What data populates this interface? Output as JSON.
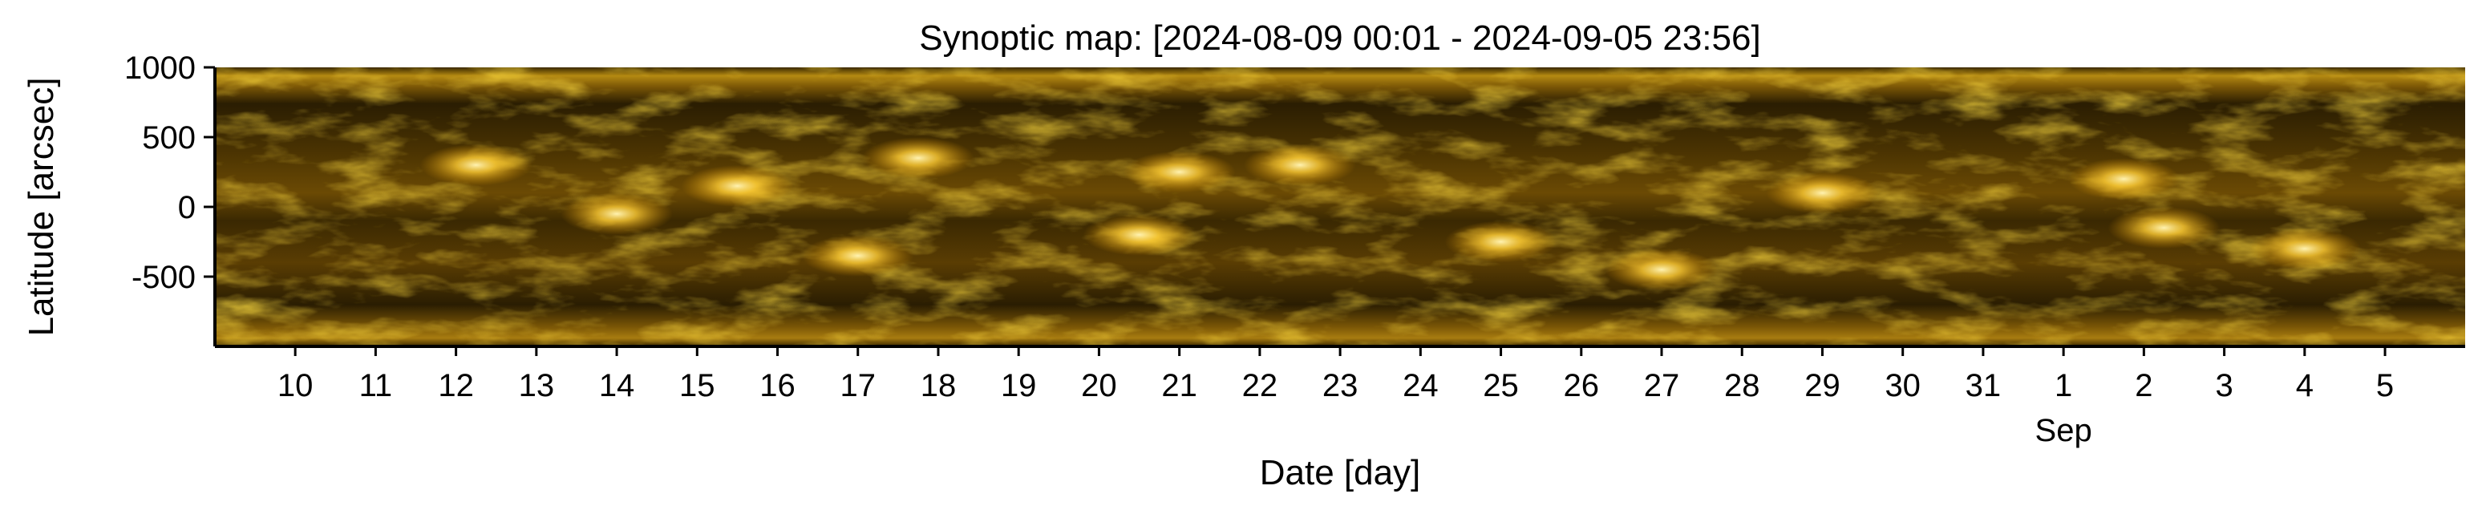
{
  "chart_data": {
    "type": "heatmap",
    "title": "Synoptic map: [2024-08-09 00:01 - 2024-09-05 23:56]",
    "xlabel": "Date [day]",
    "ylabel": "Latitude [arcsec]",
    "x_range": [
      "2024-08-09 00:01",
      "2024-09-05 23:56"
    ],
    "ylim": [
      -1000,
      1000
    ],
    "y_ticks": [
      1000,
      500,
      0,
      -500
    ],
    "y_tick_labels": [
      "1000",
      "500",
      "0",
      "-500"
    ],
    "x_ticks": [
      "2024-08-10",
      "2024-08-11",
      "2024-08-12",
      "2024-08-13",
      "2024-08-14",
      "2024-08-15",
      "2024-08-16",
      "2024-08-17",
      "2024-08-18",
      "2024-08-19",
      "2024-08-20",
      "2024-08-21",
      "2024-08-22",
      "2024-08-23",
      "2024-08-24",
      "2024-08-25",
      "2024-08-26",
      "2024-08-27",
      "2024-08-28",
      "2024-08-29",
      "2024-08-30",
      "2024-08-31",
      "2024-09-01",
      "2024-09-02",
      "2024-09-03",
      "2024-09-04",
      "2024-09-05"
    ],
    "x_tick_labels": [
      "10",
      "11",
      "12",
      "13",
      "14",
      "15",
      "16",
      "17",
      "18",
      "19",
      "20",
      "21",
      "22",
      "23",
      "24",
      "25",
      "26",
      "27",
      "28",
      "29",
      "30",
      "31",
      "1",
      "2",
      "3",
      "4",
      "5"
    ],
    "x_sublabel": "Sep",
    "x_sublabel_at": "2024-09-01",
    "colormap": {
      "dark": "#1a1000",
      "mid": "#b07800",
      "bright": "#ffe27a"
    },
    "bright_regions": [
      {
        "x": "2024-08-12 06:00",
        "y": 300
      },
      {
        "x": "2024-08-14 00:00",
        "y": -50
      },
      {
        "x": "2024-08-15 12:00",
        "y": 150
      },
      {
        "x": "2024-08-17 00:00",
        "y": -350
      },
      {
        "x": "2024-08-17 18:00",
        "y": 350
      },
      {
        "x": "2024-08-20 12:00",
        "y": -200
      },
      {
        "x": "2024-08-21 00:00",
        "y": 250
      },
      {
        "x": "2024-08-22 12:00",
        "y": 300
      },
      {
        "x": "2024-08-25 00:00",
        "y": -250
      },
      {
        "x": "2024-08-27 00:00",
        "y": -450
      },
      {
        "x": "2024-08-29 00:00",
        "y": 100
      },
      {
        "x": "2024-09-01 18:00",
        "y": 200
      },
      {
        "x": "2024-09-02 06:00",
        "y": -150
      },
      {
        "x": "2024-09-04 00:00",
        "y": -300
      }
    ]
  }
}
